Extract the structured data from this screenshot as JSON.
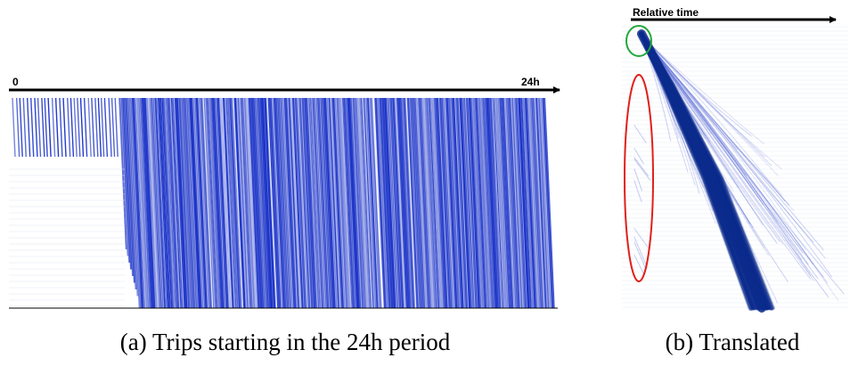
{
  "panels": [
    {
      "axis_start_label": "0",
      "axis_end_label": "24h",
      "caption": "(a) Trips starting in the 24h period"
    },
    {
      "axis_label": "Relative time",
      "caption": "(b) Translated"
    }
  ],
  "colors": {
    "trip_line": "#1c34c8",
    "translated_trip": "#0a2a8c",
    "highlight_start": "#22a83a",
    "highlight_outliers": "#e0201a",
    "axis": "#000000"
  }
}
